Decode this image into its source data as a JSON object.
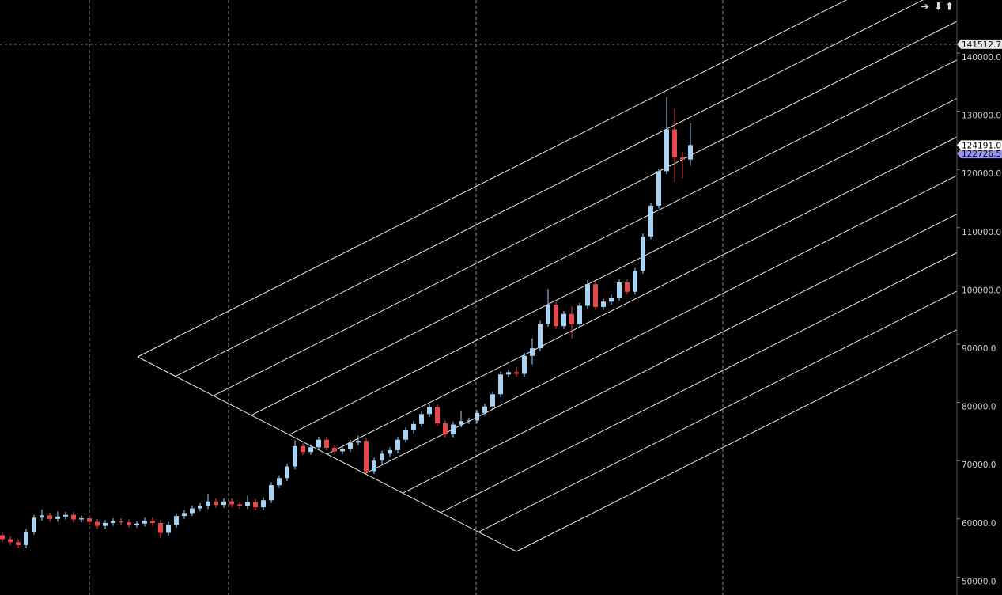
{
  "chart_data": {
    "type": "candlestick",
    "up_color": "#a9d2f2",
    "down_color": "#e5484d",
    "ylim": [
      46930,
      149100
    ],
    "yticks": [
      {
        "value": 50000,
        "label": "50000.0"
      },
      {
        "value": 60000,
        "label": "60000.0"
      },
      {
        "value": 70000,
        "label": "70000.0"
      },
      {
        "value": 80000,
        "label": "80000.0"
      },
      {
        "value": 90000,
        "label": "90000.0"
      },
      {
        "value": 100000,
        "label": "100000.0"
      },
      {
        "value": 110000,
        "label": "110000.0"
      },
      {
        "value": 120000,
        "label": "120000.0"
      },
      {
        "value": 130000,
        "label": "130000.0"
      },
      {
        "value": 140000,
        "label": "140000.0"
      }
    ],
    "crosshair": {
      "value": 141512.7,
      "label": "141512.7"
    },
    "last_price": {
      "value": 124191.0,
      "label": "124191.0"
    },
    "second_price": {
      "value": 122726.5,
      "label": "122726.5"
    },
    "open": [
      57200,
      56500,
      56000,
      55500,
      57800,
      60200,
      60600,
      60000,
      60400,
      60700,
      59900,
      60100,
      59500,
      58800,
      59300,
      59600,
      59400,
      59000,
      59200,
      59700,
      59300,
      57600,
      59000,
      60500,
      61000,
      61800,
      62200,
      63000,
      62400,
      63000,
      62500,
      62200,
      62900,
      62000,
      63200,
      65800,
      67000,
      69000,
      72500,
      71500,
      72300,
      73600,
      72200,
      71600,
      72000,
      73100,
      73400,
      68200,
      70000,
      71200,
      71800,
      73600,
      75200,
      76300,
      78000,
      79200,
      76400,
      74500,
      76200,
      76800,
      76900,
      78200,
      79300,
      81400,
      84800,
      85200,
      84900,
      88000,
      89300,
      93500,
      96800,
      93100,
      95200,
      93400,
      96600,
      100300,
      96400,
      97300,
      98000,
      100600,
      99000,
      102600,
      108500,
      113800,
      119700,
      126900,
      122100,
      121700
    ],
    "high": [
      57700,
      57000,
      56500,
      58300,
      60700,
      61600,
      61100,
      61300,
      61200,
      61200,
      60600,
      60600,
      60000,
      59800,
      60100,
      60100,
      59900,
      59700,
      60200,
      60200,
      59800,
      59500,
      61000,
      61500,
      62300,
      62700,
      64300,
      63500,
      63500,
      63500,
      63000,
      64000,
      63400,
      63700,
      66300,
      67500,
      69500,
      73500,
      73000,
      72800,
      74100,
      74100,
      72700,
      72500,
      73600,
      74300,
      73900,
      70500,
      71700,
      72300,
      74100,
      75700,
      76800,
      78500,
      79700,
      79700,
      76900,
      76700,
      78500,
      77400,
      78700,
      79800,
      81900,
      85300,
      85700,
      86100,
      88500,
      91000,
      94000,
      99500,
      97300,
      95700,
      96500,
      97100,
      101000,
      100800,
      97800,
      98500,
      101100,
      101100,
      103100,
      109000,
      114300,
      120200,
      132400,
      130500,
      123000,
      127900
    ],
    "low": [
      56000,
      55500,
      55000,
      55000,
      57300,
      59700,
      59500,
      59500,
      59900,
      59400,
      59400,
      59000,
      58300,
      58300,
      58800,
      58900,
      58500,
      58500,
      58700,
      58800,
      56700,
      57100,
      58500,
      60000,
      60500,
      61300,
      61700,
      61900,
      61900,
      62000,
      61700,
      61700,
      61500,
      61500,
      62700,
      65300,
      66500,
      68500,
      71000,
      71000,
      71800,
      71700,
      71100,
      71100,
      71500,
      72600,
      67700,
      67700,
      69500,
      70700,
      71300,
      73100,
      74700,
      75800,
      77500,
      75900,
      74000,
      74000,
      75700,
      76300,
      76400,
      77700,
      78800,
      80900,
      84300,
      84400,
      84400,
      86500,
      88800,
      93000,
      92600,
      92600,
      91000,
      92900,
      96100,
      95900,
      95900,
      96800,
      97500,
      98500,
      98500,
      102100,
      108000,
      113300,
      119200,
      117800,
      118500,
      120600
    ],
    "close": [
      56500,
      56000,
      55500,
      57800,
      60200,
      60600,
      60000,
      60400,
      60700,
      59900,
      60100,
      59500,
      58800,
      59300,
      59600,
      59400,
      59000,
      59200,
      59700,
      59300,
      57600,
      59000,
      60500,
      61000,
      61800,
      62200,
      63000,
      62400,
      63000,
      62500,
      62200,
      62900,
      62000,
      63200,
      65800,
      67000,
      69000,
      72500,
      71500,
      72300,
      73600,
      72200,
      71600,
      72000,
      73100,
      73400,
      68200,
      70000,
      71200,
      71800,
      73600,
      75200,
      76300,
      78000,
      79200,
      76400,
      74500,
      76200,
      76800,
      76900,
      78200,
      79300,
      81400,
      84800,
      85200,
      84900,
      88000,
      89300,
      93500,
      96800,
      93100,
      95200,
      93400,
      96600,
      100300,
      96400,
      97300,
      98000,
      100600,
      99000,
      102600,
      108500,
      113800,
      119700,
      126900,
      122100,
      121700,
      124191
    ]
  }
}
